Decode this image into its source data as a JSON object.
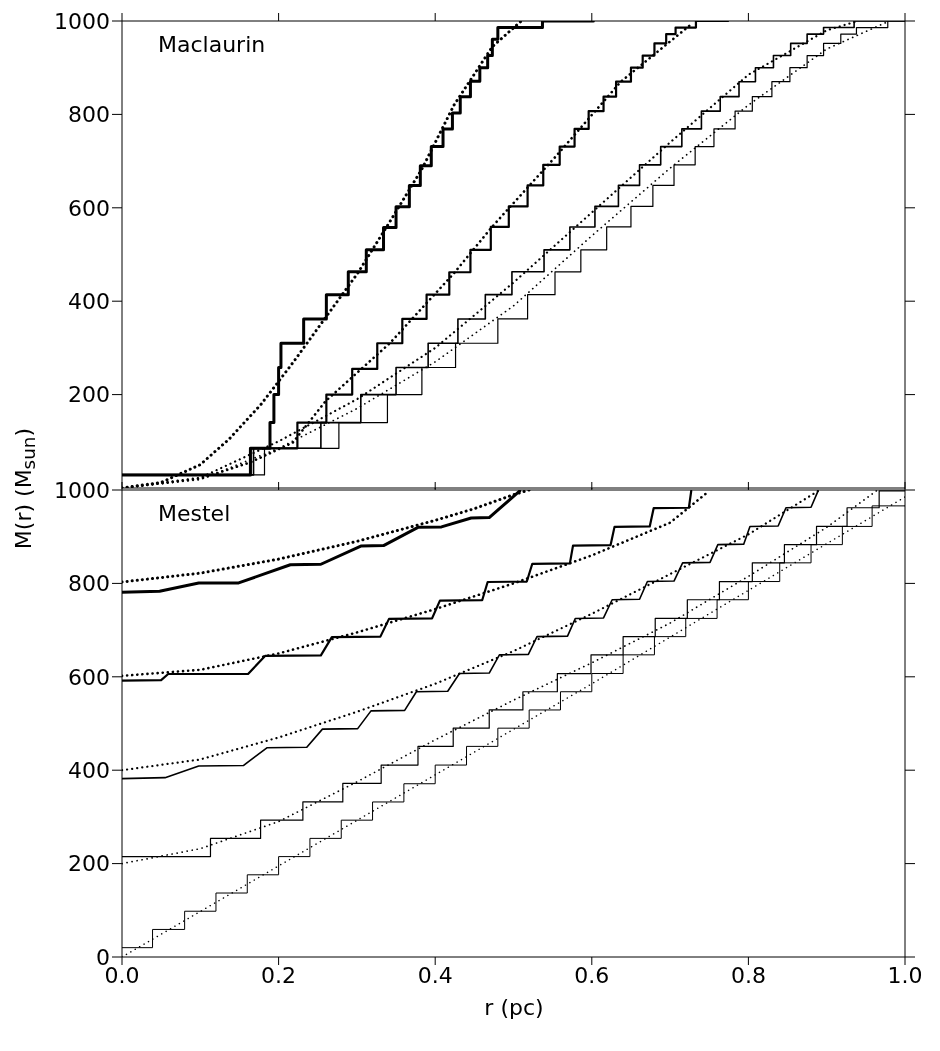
{
  "chart_data": [
    {
      "type": "step",
      "annotations": [
        "Maclaurin"
      ],
      "xlim": [
        0,
        1
      ],
      "ylim": [
        0,
        1000
      ],
      "xticks": [
        0,
        0.2,
        0.4,
        0.6,
        0.8,
        1
      ],
      "yticks": [
        200,
        400,
        600,
        800,
        1000
      ],
      "tick_labels": "y",
      "series": [
        {
          "color": "#000000",
          "x": [
            0,
            0.164,
            0.189,
            0.194,
            0.2,
            0.203,
            0.232,
            0.261,
            0.289,
            0.312,
            0.334,
            0.35,
            0.367,
            0.381,
            0.395,
            0.41,
            0.422,
            0.432,
            0.445,
            0.457,
            0.467,
            0.473,
            0.48,
            0.537,
            0.602
          ],
          "values": [
            28,
            85,
            140,
            200,
            258,
            310,
            362,
            414,
            463,
            510,
            558,
            602,
            648,
            690,
            731,
            769,
            803,
            838,
            871,
            900,
            926,
            961,
            986,
            1000,
            1000
          ]
        },
        {
          "color": "#000000",
          "x": [
            0,
            0.164,
            0.224,
            0.261,
            0.294,
            0.326,
            0.358,
            0.389,
            0.418,
            0.445,
            0.471,
            0.494,
            0.518,
            0.538,
            0.559,
            0.578,
            0.596,
            0.615,
            0.631,
            0.65,
            0.665,
            0.68,
            0.695,
            0.707,
            0.733,
            0.774
          ],
          "values": [
            28,
            85,
            140,
            200,
            255,
            310,
            362,
            414,
            462,
            510,
            559,
            603,
            648,
            692,
            731,
            769,
            807,
            838,
            870,
            900,
            926,
            952,
            972,
            986,
            1000,
            1000
          ]
        },
        {
          "color": "#000000",
          "x": [
            0,
            0.168,
            0.254,
            0.305,
            0.35,
            0.391,
            0.429,
            0.464,
            0.498,
            0.539,
            0.572,
            0.604,
            0.634,
            0.661,
            0.688,
            0.715,
            0.74,
            0.764,
            0.788,
            0.809,
            0.832,
            0.854,
            0.875,
            0.896,
            0.935,
            1
          ],
          "values": [
            28,
            85,
            140,
            200,
            258,
            310,
            362,
            414,
            463,
            510,
            559,
            603,
            648,
            692,
            731,
            769,
            807,
            838,
            870,
            900,
            926,
            952,
            972,
            986,
            1000,
            1000
          ]
        },
        {
          "color": "#000000",
          "x": [
            0,
            0.182,
            0.277,
            0.339,
            0.383,
            0.426,
            0.48,
            0.518,
            0.553,
            0.586,
            0.619,
            0.65,
            0.678,
            0.705,
            0.732,
            0.756,
            0.783,
            0.805,
            0.83,
            0.853,
            0.875,
            0.896,
            0.918,
            0.938,
            0.978,
            1
          ],
          "values": [
            28,
            85,
            140,
            200,
            258,
            310,
            362,
            414,
            463,
            510,
            559,
            603,
            648,
            692,
            731,
            769,
            807,
            838,
            870,
            900,
            926,
            952,
            972,
            986,
            1000,
            1000
          ]
        },
        {
          "type": "line",
          "line_style": "dotted",
          "color": "#000000",
          "x": [
            0,
            0.05,
            0.1,
            0.137,
            0.178,
            0.219,
            0.26,
            0.301,
            0.342,
            0.383,
            0.424,
            0.473,
            0.51
          ],
          "values": [
            0,
            12,
            50,
            105,
            180,
            270,
            365,
            460,
            570,
            683,
            820,
            945,
            1000
          ]
        },
        {
          "type": "line",
          "line_style": "dotted",
          "color": "#000000",
          "x": [
            0,
            0.1,
            0.164,
            0.218,
            0.26,
            0.342,
            0.424,
            0.473,
            0.555,
            0.637,
            0.727
          ],
          "values": [
            0,
            20,
            55,
            97,
            186,
            310,
            460,
            560,
            712,
            870,
            993
          ]
        },
        {
          "type": "line",
          "line_style": "dotted",
          "color": "#000000",
          "x": [
            0,
            0.1,
            0.2,
            0.3,
            0.4,
            0.5,
            0.6,
            0.7,
            0.8,
            0.9,
            0.94
          ],
          "values": [
            0,
            22,
            100,
            190,
            300,
            440,
            590,
            740,
            885,
            980,
            1000
          ]
        },
        {
          "type": "line",
          "line_style": "dotted",
          "color": "#000000",
          "x": [
            0,
            0.1,
            0.2,
            0.3,
            0.4,
            0.5,
            0.6,
            0.7,
            0.8,
            0.9,
            0.98
          ],
          "values": [
            0,
            18,
            85,
            170,
            270,
            390,
            540,
            685,
            820,
            940,
            1000
          ]
        }
      ]
    },
    {
      "type": "line",
      "annotations": [
        "Mestel"
      ],
      "xlabel": "r (pc)",
      "ylabel": "M(r) (M$_{sun}$)",
      "xlim": [
        0,
        1
      ],
      "ylim": [
        0,
        1000
      ],
      "xticks": [
        {
          "value": 0,
          "label": "0.0"
        },
        {
          "value": 0.2,
          "label": "0.2"
        },
        {
          "value": 0.4,
          "label": "0.4"
        },
        {
          "value": 0.6,
          "label": "0.6"
        },
        {
          "value": 0.8,
          "label": "0.8"
        },
        {
          "value": 1,
          "label": "1.0"
        }
      ],
      "yticks": [
        0,
        200,
        400,
        600,
        800,
        1000
      ],
      "series": [
        {
          "color": "#000000",
          "x": [
            0,
            0.048,
            0.098,
            0.149,
            0.215,
            0.254,
            0.305,
            0.334,
            0.378,
            0.408,
            0.446,
            0.469,
            0.508
          ],
          "values": [
            781,
            783,
            801,
            801,
            840,
            841,
            880,
            881,
            920,
            921,
            940,
            941,
            998
          ]
        },
        {
          "color": "#000000",
          "x": [
            0,
            0.05,
            0.059,
            0.161,
            0.183,
            0.254,
            0.268,
            0.33,
            0.341,
            0.396,
            0.406,
            0.46,
            0.467,
            0.517,
            0.524,
            0.572,
            0.576,
            0.624,
            0.629,
            0.674,
            0.679,
            0.724,
            0.727
          ],
          "values": [
            592,
            593,
            606,
            606,
            645,
            646,
            685,
            686,
            724,
            725,
            763,
            764,
            803,
            804,
            842,
            843,
            881,
            882,
            921,
            922,
            961,
            962,
            998
          ]
        },
        {
          "color": "#000000",
          "x": [
            0,
            0.055,
            0.098,
            0.155,
            0.185,
            0.236,
            0.256,
            0.301,
            0.318,
            0.361,
            0.376,
            0.416,
            0.431,
            0.469,
            0.482,
            0.519,
            0.53,
            0.569,
            0.579,
            0.615,
            0.626,
            0.661,
            0.671,
            0.705,
            0.716,
            0.751,
            0.761,
            0.794,
            0.802,
            0.838,
            0.848,
            0.88,
            0.889
          ],
          "values": [
            382,
            384,
            409,
            410,
            448,
            449,
            488,
            489,
            527,
            528,
            568,
            569,
            607,
            608,
            647,
            648,
            686,
            687,
            725,
            726,
            765,
            766,
            804,
            805,
            844,
            845,
            883,
            884,
            922,
            923,
            962,
            963,
            998
          ]
        },
        {
          "type": "step",
          "color": "#000000",
          "x": [
            0,
            0.113,
            0.177,
            0.231,
            0.282,
            0.331,
            0.378,
            0.423,
            0.469,
            0.512,
            0.556,
            0.599,
            0.64,
            0.681,
            0.722,
            0.763,
            0.805,
            0.846,
            0.887,
            0.926,
            0.967,
            1
          ],
          "values": [
            215,
            254,
            293,
            332,
            372,
            411,
            451,
            490,
            529,
            568,
            607,
            647,
            686,
            725,
            765,
            804,
            844,
            883,
            922,
            962,
            998,
            998
          ]
        },
        {
          "type": "step",
          "color": "#000000",
          "x": [
            0,
            0.039,
            0.08,
            0.12,
            0.16,
            0.2,
            0.24,
            0.28,
            0.32,
            0.36,
            0.4,
            0.44,
            0.48,
            0.52,
            0.56,
            0.6,
            0.64,
            0.68,
            0.72,
            0.76,
            0.8,
            0.84,
            0.88,
            0.92,
            0.958,
            1
          ],
          "values": [
            20,
            59,
            98,
            137,
            176,
            215,
            254,
            293,
            332,
            371,
            411,
            451,
            490,
            529,
            568,
            607,
            647,
            686,
            725,
            765,
            804,
            844,
            883,
            922,
            966,
            966
          ]
        },
        {
          "line_style": "dotted",
          "color": "#000000",
          "x": [
            0,
            0.1,
            0.2,
            0.3,
            0.4,
            0.45,
            0.5,
            0.52
          ],
          "values": [
            803,
            822,
            852,
            890,
            935,
            960,
            990,
            1000
          ]
        },
        {
          "line_style": "dotted",
          "color": "#000000",
          "x": [
            0,
            0.1,
            0.2,
            0.3,
            0.4,
            0.5,
            0.6,
            0.7,
            0.75
          ],
          "values": [
            602,
            615,
            650,
            695,
            745,
            800,
            860,
            930,
            998
          ]
        },
        {
          "line_style": "dotted",
          "color": "#000000",
          "x": [
            0,
            0.1,
            0.2,
            0.3,
            0.4,
            0.5,
            0.6,
            0.7,
            0.8,
            0.889
          ],
          "values": [
            400,
            423,
            470,
            525,
            585,
            655,
            735,
            820,
            905,
            998
          ]
        },
        {
          "line_style": "dotted",
          "color": "#000000",
          "x": [
            0,
            0.1,
            0.2,
            0.3,
            0.4,
            0.5,
            0.6,
            0.7,
            0.8,
            0.9,
            0.965
          ],
          "values": [
            200,
            232,
            290,
            375,
            465,
            550,
            630,
            715,
            815,
            920,
            1000
          ]
        },
        {
          "line_style": "dotted",
          "color": "#000000",
          "x": [
            0,
            0.2,
            0.4,
            0.6,
            0.8,
            1
          ],
          "values": [
            0,
            195,
            390,
            585,
            785,
            985
          ]
        }
      ]
    }
  ]
}
